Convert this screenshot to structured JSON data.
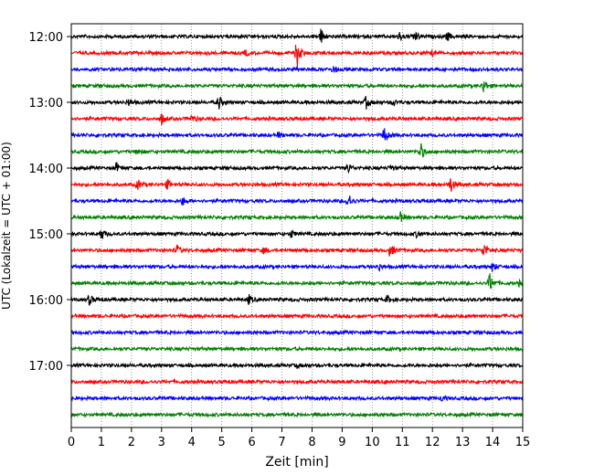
{
  "chart_data": {
    "type": "line",
    "xlabel": "Zeit  [min]",
    "ylabel": "UTC (Lokalzeit = UTC + 01:00)",
    "xlim": [
      0,
      15
    ],
    "x_ticks": [
      "0",
      "1",
      "2",
      "3",
      "4",
      "5",
      "6",
      "7",
      "8",
      "9",
      "10",
      "11",
      "12",
      "13",
      "14",
      "15"
    ],
    "y_ticks": [
      "12:00",
      "13:00",
      "14:00",
      "15:00",
      "16:00",
      "17:00"
    ],
    "grid": "vertical dotted lines at each minute",
    "trace_colors": [
      "#000000",
      "#ff0000",
      "#0000ff",
      "#008000"
    ],
    "traces": [
      {
        "start": "12:00",
        "color": "#000000",
        "events": [
          {
            "t": 8.3,
            "amp": 0.8
          },
          {
            "t": 11.4,
            "amp": 0.6
          },
          {
            "t": 12.5,
            "amp": 0.45
          },
          {
            "t": 10.9,
            "amp": 0.4
          }
        ]
      },
      {
        "start": "12:15",
        "color": "#ff0000",
        "events": [
          {
            "t": 7.5,
            "amp": 1.6
          },
          {
            "t": 5.8,
            "amp": 0.25
          },
          {
            "t": 12.0,
            "amp": 0.25
          }
        ]
      },
      {
        "start": "12:30",
        "color": "#0000ff",
        "events": [
          {
            "t": 8.7,
            "amp": 0.35
          },
          {
            "t": 3.2,
            "amp": 0.2
          }
        ]
      },
      {
        "start": "12:45",
        "color": "#008000",
        "events": [
          {
            "t": 13.7,
            "amp": 0.7
          }
        ]
      },
      {
        "start": "13:00",
        "color": "#000000",
        "events": [
          {
            "t": 4.9,
            "amp": 0.7
          },
          {
            "t": 9.8,
            "amp": 0.6
          },
          {
            "t": 10.7,
            "amp": 0.4
          },
          {
            "t": 1.9,
            "amp": 0.35
          }
        ]
      },
      {
        "start": "13:15",
        "color": "#ff0000",
        "events": [
          {
            "t": 3.0,
            "amp": 0.55
          },
          {
            "t": 4.0,
            "amp": 0.35
          }
        ]
      },
      {
        "start": "13:30",
        "color": "#0000ff",
        "events": [
          {
            "t": 10.4,
            "amp": 0.9
          },
          {
            "t": 6.9,
            "amp": 0.3
          }
        ]
      },
      {
        "start": "13:45",
        "color": "#008000",
        "events": [
          {
            "t": 11.6,
            "amp": 0.95
          },
          {
            "t": 2.2,
            "amp": 0.35
          }
        ]
      },
      {
        "start": "14:00",
        "color": "#000000",
        "events": [
          {
            "t": 1.5,
            "amp": 0.5
          },
          {
            "t": 9.2,
            "amp": 0.5
          },
          {
            "t": 10.6,
            "amp": 0.35
          }
        ]
      },
      {
        "start": "14:15",
        "color": "#ff0000",
        "events": [
          {
            "t": 12.6,
            "amp": 0.85
          },
          {
            "t": 2.2,
            "amp": 0.5
          },
          {
            "t": 3.2,
            "amp": 0.45
          }
        ]
      },
      {
        "start": "14:30",
        "color": "#0000ff",
        "events": [
          {
            "t": 9.2,
            "amp": 0.9
          },
          {
            "t": 3.7,
            "amp": 0.45
          }
        ]
      },
      {
        "start": "14:45",
        "color": "#008000",
        "events": [
          {
            "t": 10.9,
            "amp": 0.7
          }
        ]
      },
      {
        "start": "15:00",
        "color": "#000000",
        "events": [
          {
            "t": 1.0,
            "amp": 0.6
          },
          {
            "t": 7.3,
            "amp": 0.4
          },
          {
            "t": 11.5,
            "amp": 0.35
          }
        ]
      },
      {
        "start": "15:15",
        "color": "#ff0000",
        "events": [
          {
            "t": 13.7,
            "amp": 0.8
          },
          {
            "t": 10.6,
            "amp": 0.7
          },
          {
            "t": 3.5,
            "amp": 0.5
          },
          {
            "t": 6.4,
            "amp": 0.35
          }
        ]
      },
      {
        "start": "15:30",
        "color": "#0000ff",
        "events": [
          {
            "t": 14.0,
            "amp": 0.5
          },
          {
            "t": 10.2,
            "amp": 0.4
          }
        ]
      },
      {
        "start": "15:45",
        "color": "#008000",
        "events": [
          {
            "t": 13.9,
            "amp": 1.0
          },
          {
            "t": 14.9,
            "amp": 0.3
          }
        ]
      },
      {
        "start": "16:00",
        "color": "#000000",
        "events": [
          {
            "t": 0.6,
            "amp": 0.5
          },
          {
            "t": 5.9,
            "amp": 0.45
          },
          {
            "t": 10.5,
            "amp": 0.35
          }
        ]
      },
      {
        "start": "16:15",
        "color": "#ff0000",
        "events": []
      },
      {
        "start": "16:30",
        "color": "#0000ff",
        "events": []
      },
      {
        "start": "16:45",
        "color": "#008000",
        "events": []
      },
      {
        "start": "17:00",
        "color": "#000000",
        "events": [
          {
            "t": 7.5,
            "amp": 0.2
          }
        ]
      },
      {
        "start": "17:15",
        "color": "#ff0000",
        "events": []
      },
      {
        "start": "17:30",
        "color": "#0000ff",
        "events": [
          {
            "t": 12.3,
            "amp": 0.25
          }
        ]
      },
      {
        "start": "17:45",
        "color": "#008000",
        "events": []
      }
    ]
  }
}
